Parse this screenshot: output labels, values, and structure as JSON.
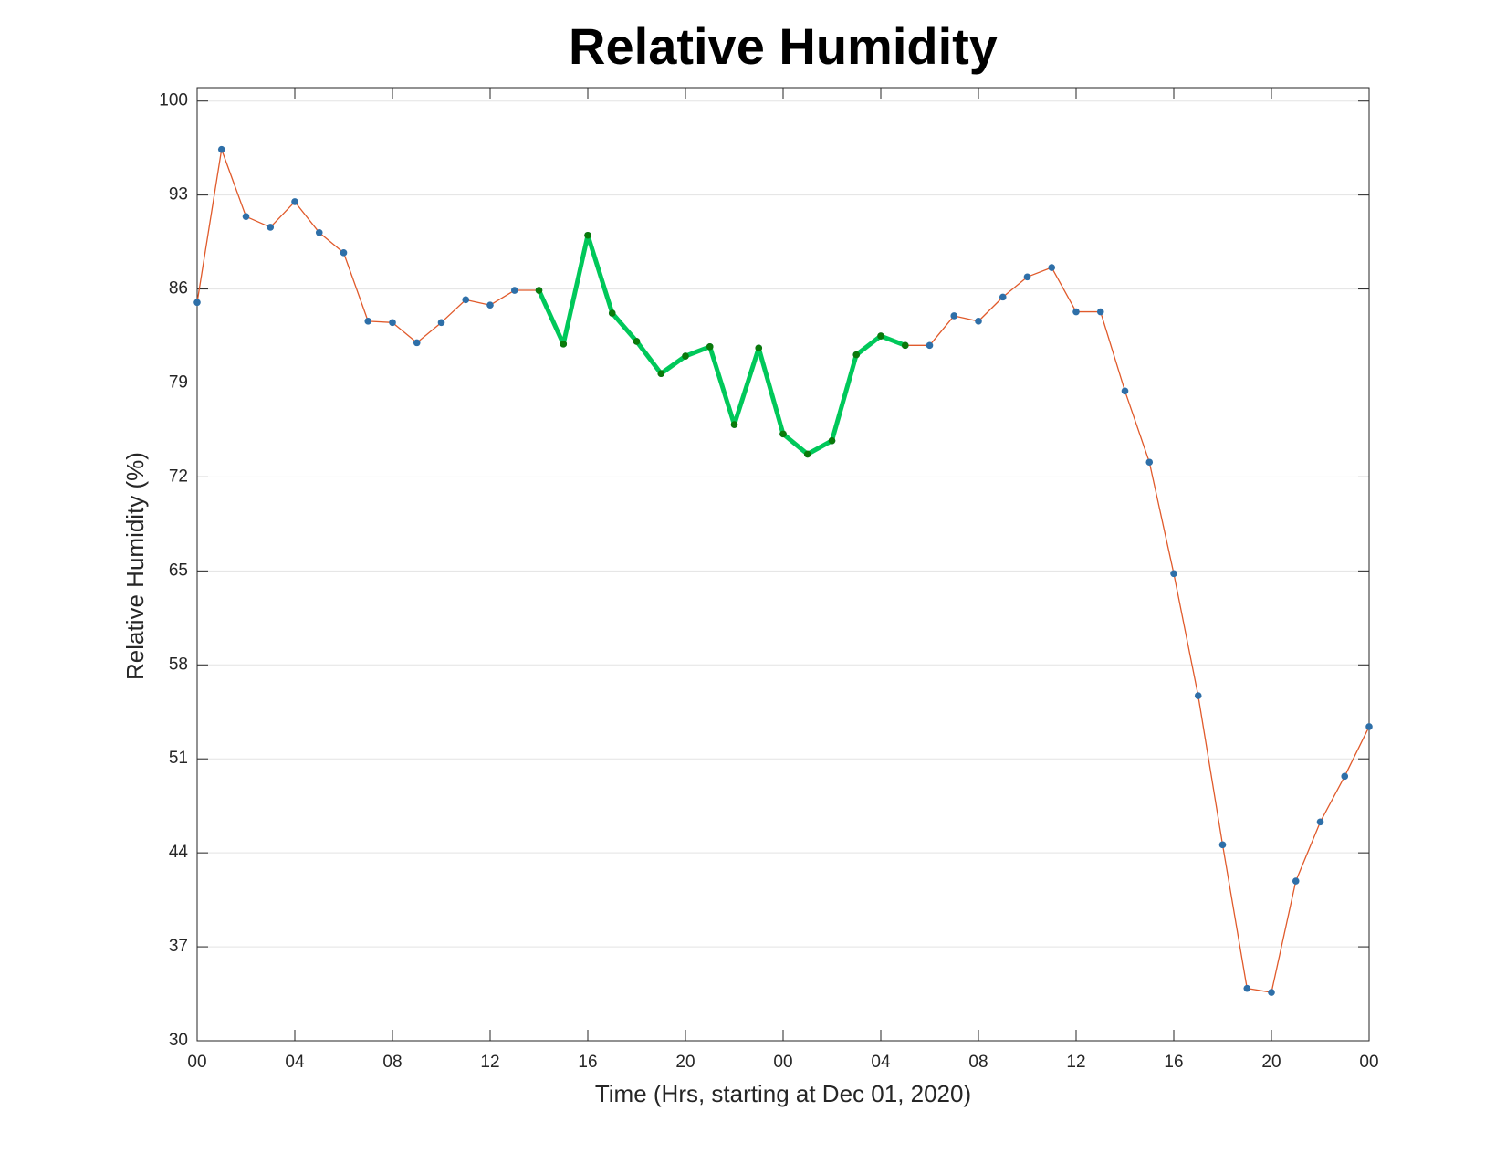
{
  "chart_data": {
    "type": "line",
    "title": "Relative Humidity",
    "xlabel": "Time (Hrs, starting at Dec 01, 2020)",
    "ylabel": "Relative Humidity (%)",
    "x": [
      0,
      1,
      2,
      3,
      4,
      5,
      6,
      7,
      8,
      9,
      10,
      11,
      12,
      13,
      14,
      15,
      16,
      17,
      18,
      19,
      20,
      21,
      22,
      23,
      24,
      25,
      26,
      27,
      28,
      29,
      30,
      31,
      32,
      33,
      34,
      35,
      36,
      37,
      38,
      39,
      40,
      41,
      42,
      43,
      44,
      45,
      46,
      47,
      48
    ],
    "series": [
      {
        "color": "#e05a2b",
        "marker_color": "#2e6fa8",
        "values": [
          85.0,
          96.4,
          91.4,
          90.6,
          92.5,
          90.2,
          88.7,
          83.6,
          83.5,
          82.0,
          83.5,
          85.2,
          84.8,
          85.9,
          85.9,
          81.9,
          90.0,
          84.2,
          82.1,
          79.7,
          81.0,
          81.7,
          75.9,
          81.6,
          75.2,
          73.7,
          74.7,
          81.1,
          82.5,
          81.8,
          81.8,
          84.0,
          83.6,
          85.4,
          86.9,
          87.6,
          84.3,
          84.3,
          78.4,
          73.1,
          64.8,
          55.7,
          44.6,
          33.9,
          33.6,
          41.9,
          46.3,
          49.7,
          53.4
        ]
      },
      {
        "color": "#00c85a",
        "marker_color": "#0a7a0a",
        "line_width": 5,
        "values": [
          null,
          null,
          null,
          null,
          null,
          null,
          null,
          null,
          null,
          null,
          null,
          null,
          null,
          null,
          85.9,
          81.9,
          90.0,
          84.2,
          82.1,
          79.7,
          81.0,
          81.7,
          75.9,
          81.6,
          75.2,
          73.7,
          74.7,
          81.1,
          82.5,
          81.8,
          null,
          null,
          null,
          null,
          null,
          null,
          null,
          null,
          null,
          null,
          null,
          null,
          null,
          null,
          null,
          null,
          null,
          null,
          null
        ]
      }
    ],
    "xlim": [
      0,
      48
    ],
    "xticks": [
      {
        "value": 0,
        "label": "00"
      },
      {
        "value": 4,
        "label": "04"
      },
      {
        "value": 8,
        "label": "08"
      },
      12,
      16,
      20,
      {
        "value": 24,
        "label": "00"
      },
      {
        "value": 28,
        "label": "04"
      },
      {
        "value": 32,
        "label": "08"
      },
      {
        "value": 36,
        "label": "12"
      },
      {
        "value": 40,
        "label": "16"
      },
      {
        "value": 44,
        "label": "20"
      },
      {
        "value": 48,
        "label": "00"
      }
    ],
    "ylim": [
      30,
      101
    ],
    "yticks": [
      30,
      37,
      44,
      51,
      58,
      65,
      72,
      79,
      86,
      93,
      100
    ],
    "grid": true
  }
}
